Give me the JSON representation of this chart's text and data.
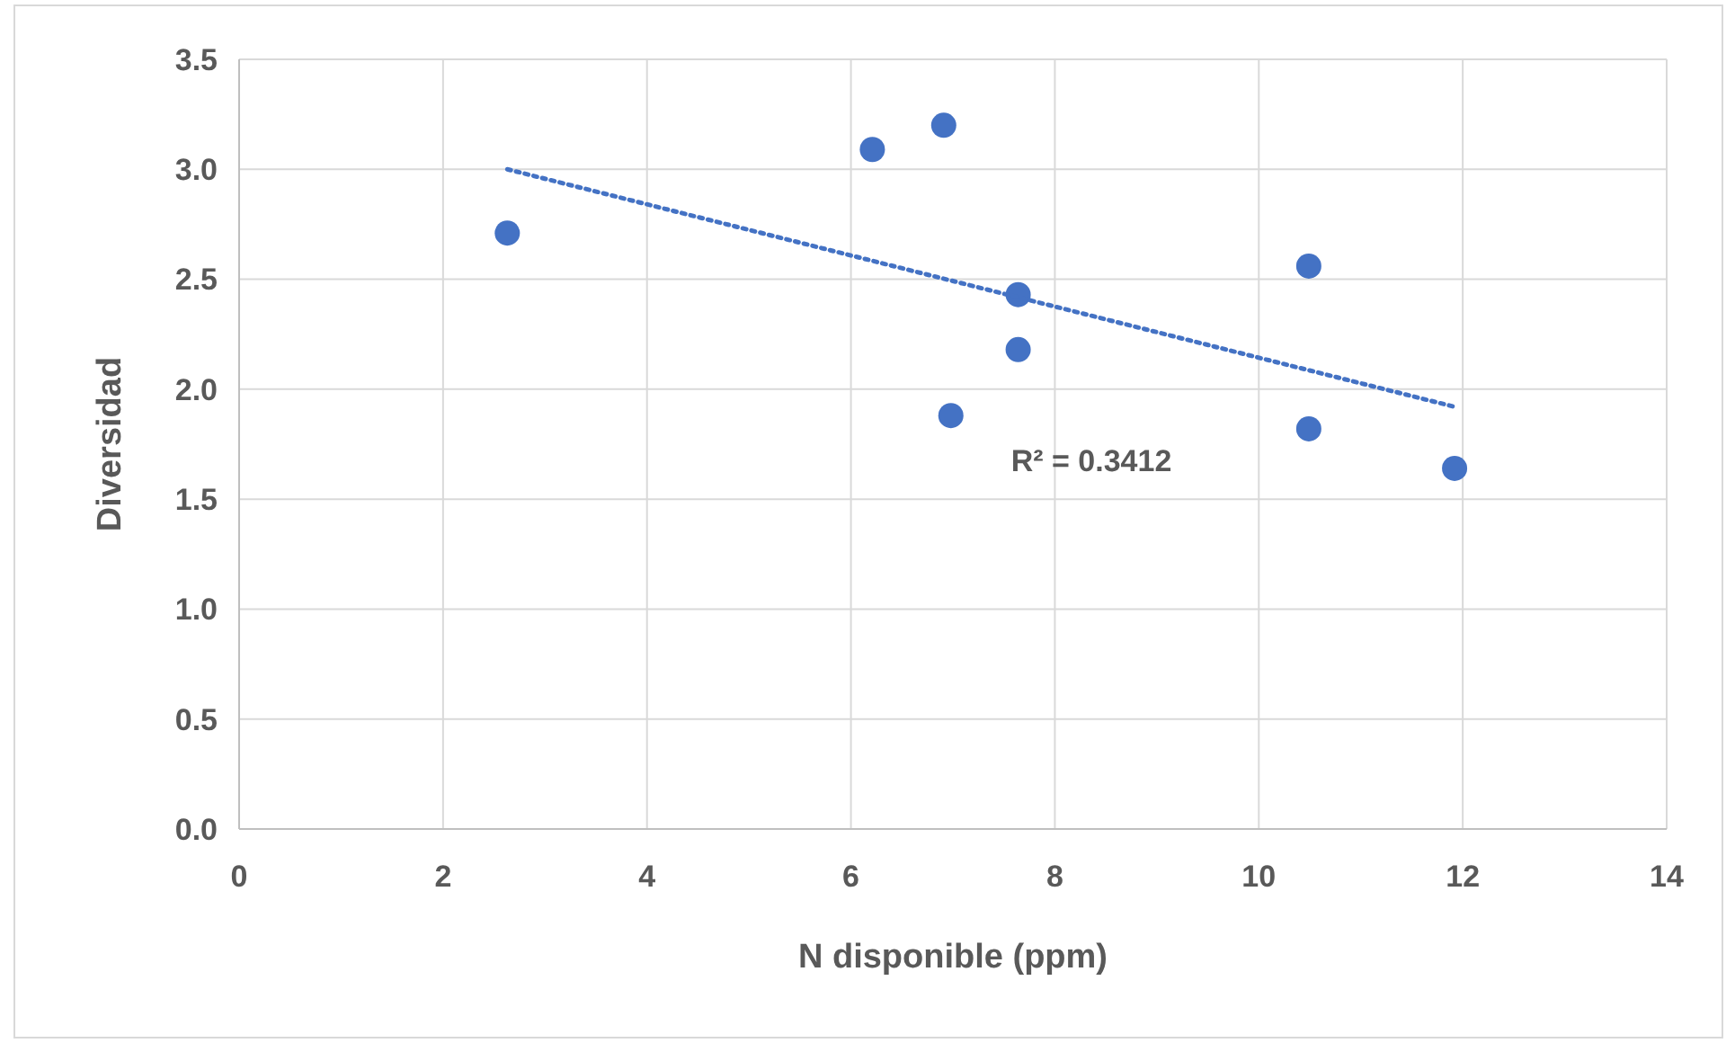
{
  "chart_data": {
    "type": "scatter",
    "xlabel": "N disponible (ppm)",
    "ylabel": "Diversidad",
    "xlim": [
      0,
      14
    ],
    "xticks": [
      0,
      2,
      4,
      6,
      8,
      10,
      12,
      14
    ],
    "ylim": [
      0,
      3.5
    ],
    "yticks": [
      {
        "value": 0,
        "label": "0.0"
      },
      {
        "value": 0.5,
        "label": "0.5"
      },
      {
        "value": 1,
        "label": "1.0"
      },
      {
        "value": 1.5,
        "label": "1.5"
      },
      {
        "value": 2,
        "label": "2.0"
      },
      {
        "value": 2.5,
        "label": "2.5"
      },
      {
        "value": 3,
        "label": "3.0"
      },
      {
        "value": 3.5,
        "label": "3.5"
      }
    ],
    "grid": true,
    "series": [
      {
        "type": "scatter",
        "color": "#4472c4",
        "marker": "circle",
        "x": [
          2.63,
          6.21,
          6.91,
          7.64,
          7.64,
          6.98,
          10.49,
          10.49,
          11.92
        ],
        "values": [
          2.71,
          3.09,
          3.2,
          2.43,
          2.18,
          1.88,
          2.56,
          1.82,
          1.64
        ]
      },
      {
        "type": "line",
        "color": "#4472c4",
        "marker": "none",
        "line_style": "dotted",
        "x": [
          2.63,
          11.92
        ],
        "values": [
          3.0,
          1.92
        ]
      }
    ],
    "annotations": [
      "R² = 0.3412"
    ]
  }
}
